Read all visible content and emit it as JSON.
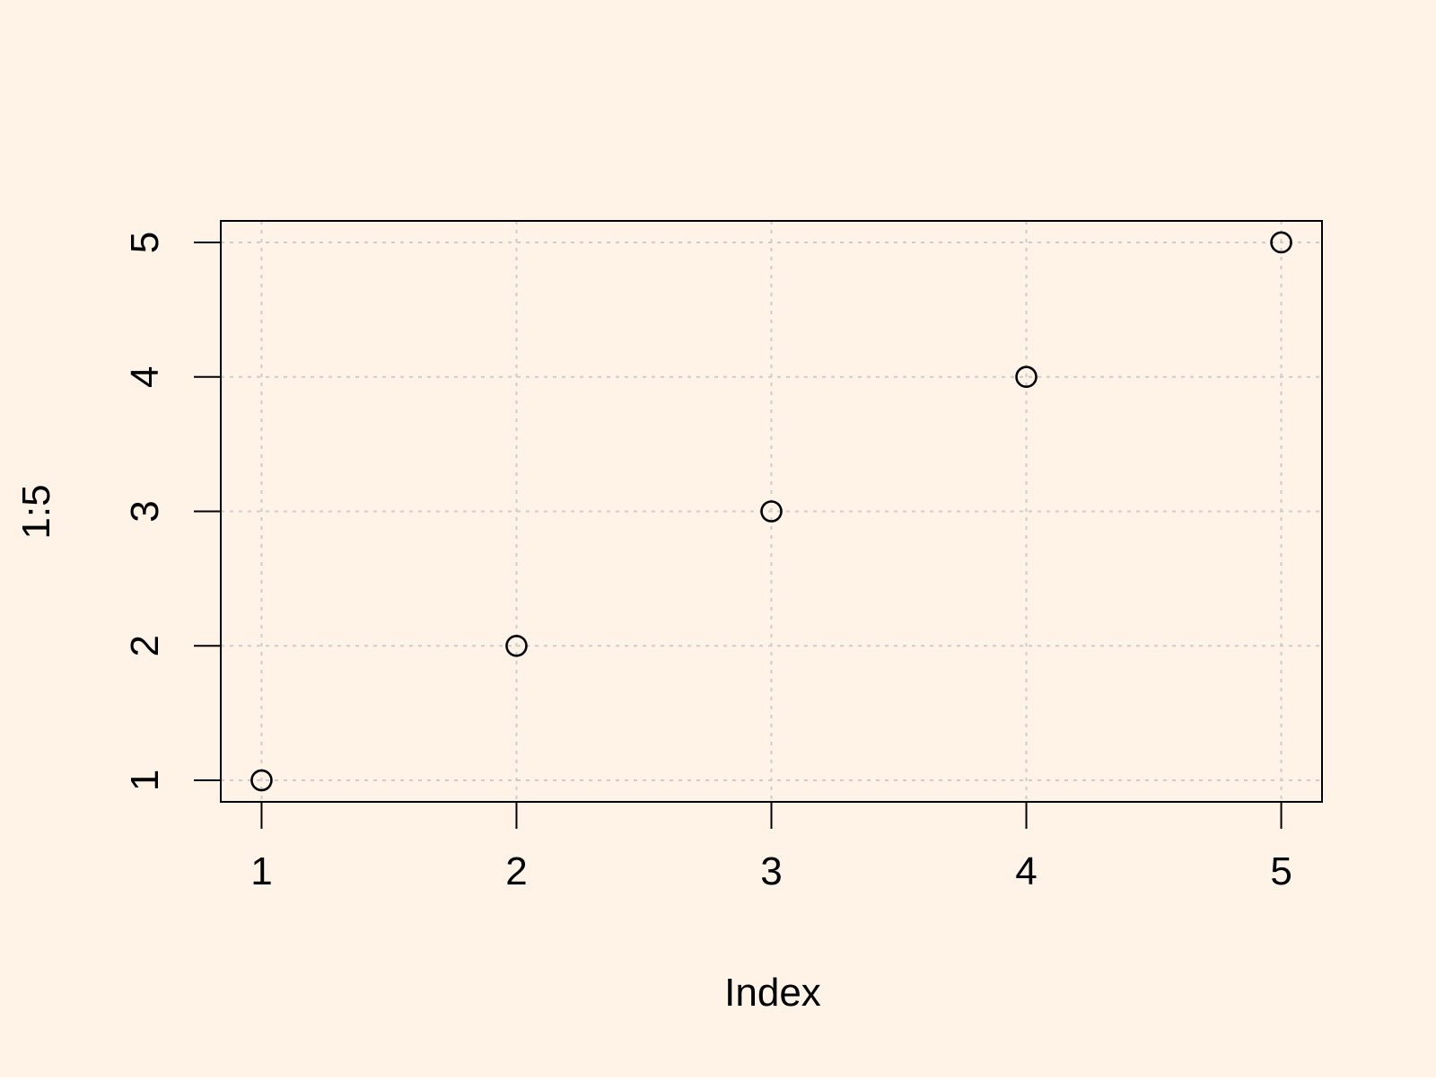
{
  "background_color": "#FFF3E8",
  "grid_color": "#CCCCCC",
  "axis_color": "#000000",
  "chart_data": {
    "type": "scatter",
    "title": "",
    "xlabel": "Index",
    "ylabel": "1:5",
    "x": [
      1,
      2,
      3,
      4,
      5
    ],
    "y": [
      1,
      2,
      3,
      4,
      5
    ],
    "xlim": [
      0.84,
      5.16
    ],
    "ylim": [
      0.84,
      5.16
    ],
    "xticks": [
      1,
      2,
      3,
      4,
      5
    ],
    "yticks": [
      1,
      2,
      3,
      4,
      5
    ],
    "xtick_labels": [
      "1",
      "2",
      "3",
      "4",
      "5"
    ],
    "ytick_labels": [
      "1",
      "2",
      "3",
      "4",
      "5"
    ],
    "grid": true,
    "grid_style": "dotted",
    "marker": "open-circle",
    "legend": "none"
  }
}
